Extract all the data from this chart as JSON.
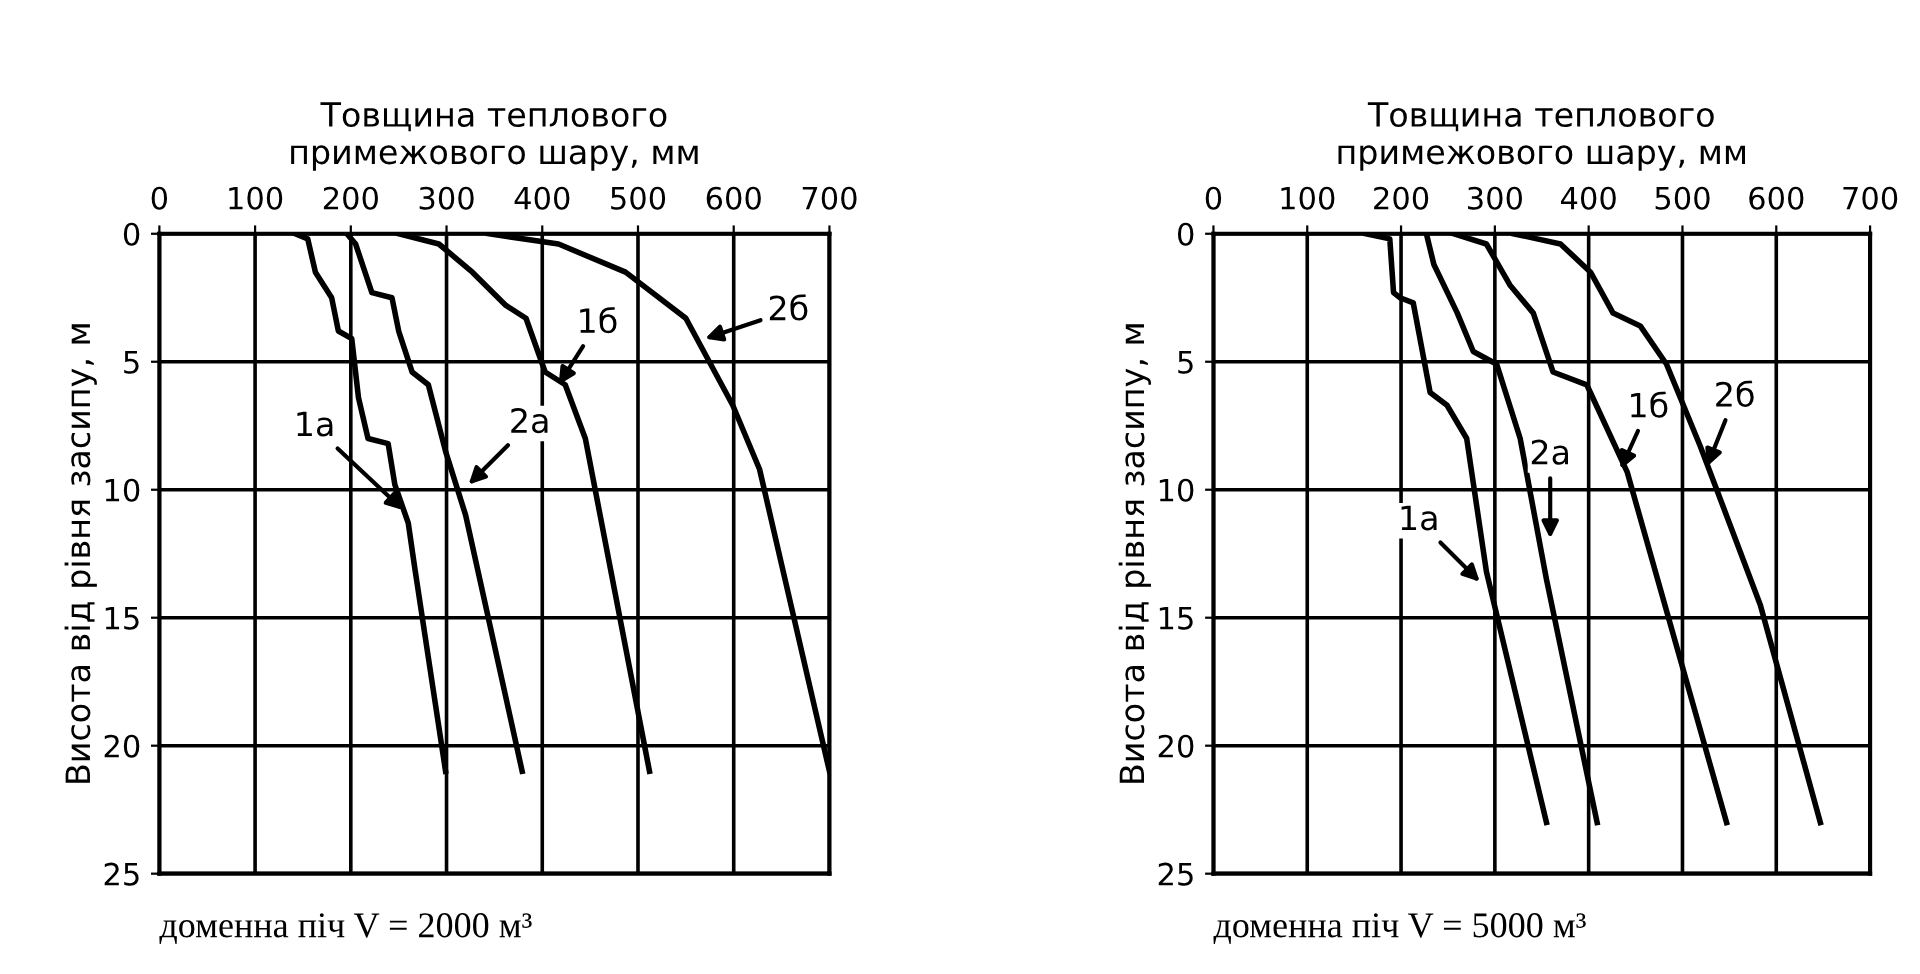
{
  "chart_data": [
    {
      "type": "line",
      "xlabel": "Товщина теплового\nпримежового шару, мм",
      "ylabel": "Висота від рівня засипу, м",
      "xlim": [
        0,
        700
      ],
      "ylim": [
        25,
        0
      ],
      "xticks": [
        0,
        100,
        200,
        300,
        400,
        500,
        600,
        700
      ],
      "yticks": [
        0,
        5,
        10,
        15,
        20,
        25
      ],
      "grid": true,
      "marker": "none",
      "line_style": "solid",
      "series": [
        {
          "color": "#000000",
          "x": [
            142,
            155,
            163,
            180,
            187,
            201,
            208,
            218,
            239,
            246,
            260,
            267,
            299
          ],
          "values": [
            0,
            0.2,
            1.5,
            2.5,
            3.8,
            4.1,
            6.4,
            8,
            8.2,
            9.8,
            11.3,
            13.1,
            21
          ]
        },
        {
          "color": "#000000",
          "x": [
            196,
            205,
            222,
            243,
            250,
            264,
            281,
            299,
            320,
            379
          ],
          "values": [
            0,
            0.4,
            2.3,
            2.5,
            3.8,
            5.4,
            5.9,
            8.5,
            11,
            21
          ]
        },
        {
          "color": "#000000",
          "x": [
            250,
            292,
            327,
            362,
            383,
            403,
            424,
            445,
            512
          ],
          "values": [
            0,
            0.4,
            1.5,
            2.8,
            3.3,
            5.4,
            5.9,
            8,
            21
          ]
        },
        {
          "color": "#000000",
          "x": [
            344,
            417,
            487,
            550,
            599,
            627,
            700
          ],
          "values": [
            0,
            0.4,
            1.5,
            3.3,
            6.7,
            9.2,
            21
          ]
        }
      ],
      "annotations": [
        {
          "text": "1а",
          "x": 255,
          "y": 10.8
        },
        {
          "text": "2а",
          "x": 323,
          "y": 9.8
        },
        {
          "text": "1б",
          "x": 417,
          "y": 5.9
        },
        {
          "text": "2б",
          "x": 570,
          "y": 4.1
        },
        "доменна піч V = 2000 м³"
      ]
    },
    {
      "type": "line",
      "xlabel": "Товщина теплового\nпримежового шару, мм",
      "ylabel": "Висота від рівня засипу, м",
      "xlim": [
        0,
        700
      ],
      "ylim": [
        25,
        0
      ],
      "xticks": [
        0,
        100,
        200,
        300,
        400,
        500,
        600,
        700
      ],
      "yticks": [
        0,
        5,
        10,
        15,
        20,
        25
      ],
      "grid": true,
      "marker": "none",
      "line_style": "solid",
      "series": [
        {
          "color": "#000000",
          "x": [
            163,
            188,
            192,
            199,
            213,
            231,
            249,
            270,
            291,
            355
          ],
          "values": [
            0,
            0.2,
            2.3,
            2.5,
            2.7,
            6.2,
            6.7,
            8,
            13.2,
            23
          ]
        },
        {
          "color": "#000000",
          "x": [
            227,
            235,
            260,
            277,
            302,
            327,
            355,
            409
          ],
          "values": [
            0,
            1.2,
            3.1,
            4.6,
            5.1,
            8,
            13.5,
            23
          ]
        },
        {
          "color": "#000000",
          "x": [
            256,
            291,
            316,
            341,
            362,
            398,
            441,
            547
          ],
          "values": [
            0,
            0.4,
            2,
            3.1,
            5.4,
            5.9,
            9.3,
            23
          ]
        },
        {
          "color": "#000000",
          "x": [
            320,
            370,
            402,
            426,
            455,
            483,
            519,
            583,
            647
          ],
          "values": [
            0,
            0.4,
            1.5,
            3.1,
            3.6,
            5.1,
            8.3,
            14.5,
            23
          ]
        }
      ],
      "annotations": [
        {
          "text": "1а",
          "x": 284,
          "y": 13.6
        },
        {
          "text": "2а",
          "x": 359,
          "y": 11.9
        },
        {
          "text": "1б",
          "x": 434,
          "y": 9.2
        },
        {
          "text": "2б",
          "x": 526,
          "y": 9.1
        },
        "доменна піч V = 5000 м³"
      ]
    }
  ]
}
